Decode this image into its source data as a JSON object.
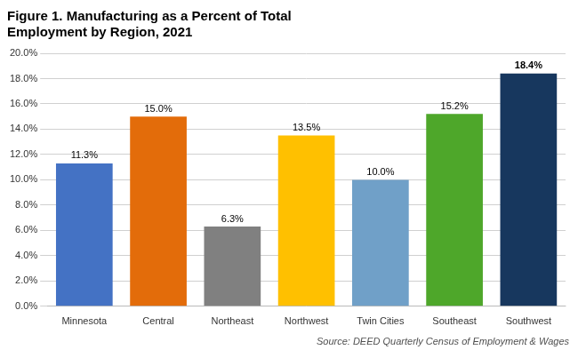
{
  "chart_data": {
    "type": "bar",
    "title": "Figure 1. Manufacturing as a Percent of Total\nEmployment by Region, 2021",
    "source": "Source: DEED Quarterly Census of Employment & Wages",
    "categories": [
      "Minnesota",
      "Central",
      "Northeast",
      "Northwest",
      "Twin Cities",
      "Southeast",
      "Southwest"
    ],
    "values": [
      11.3,
      15.0,
      6.3,
      13.5,
      10.0,
      15.2,
      18.4
    ],
    "value_labels": [
      "11.3%",
      "15.0%",
      "6.3%",
      "13.5%",
      "10.0%",
      "15.2%",
      "18.4%"
    ],
    "data_labels": true,
    "colors": [
      "#4472C4",
      "#E36C0A",
      "#808080",
      "#FFC000",
      "#70A0C8",
      "#4EA72A",
      "#17375E"
    ],
    "ylim": [
      0,
      20
    ],
    "yticks": [
      {
        "value": 0,
        "label": "0.0%"
      },
      {
        "value": 2,
        "label": "2.0%"
      },
      {
        "value": 4,
        "label": "4.0%"
      },
      {
        "value": 6,
        "label": "6.0%"
      },
      {
        "value": 8,
        "label": "8.0%"
      },
      {
        "value": 10,
        "label": "10.0%"
      },
      {
        "value": 12,
        "label": "12.0%"
      },
      {
        "value": 14,
        "label": "14.0%"
      },
      {
        "value": 16,
        "label": "16.0%"
      },
      {
        "value": 18,
        "label": "18.0%"
      },
      {
        "value": 20,
        "label": "20.0%"
      }
    ],
    "grid": true
  }
}
